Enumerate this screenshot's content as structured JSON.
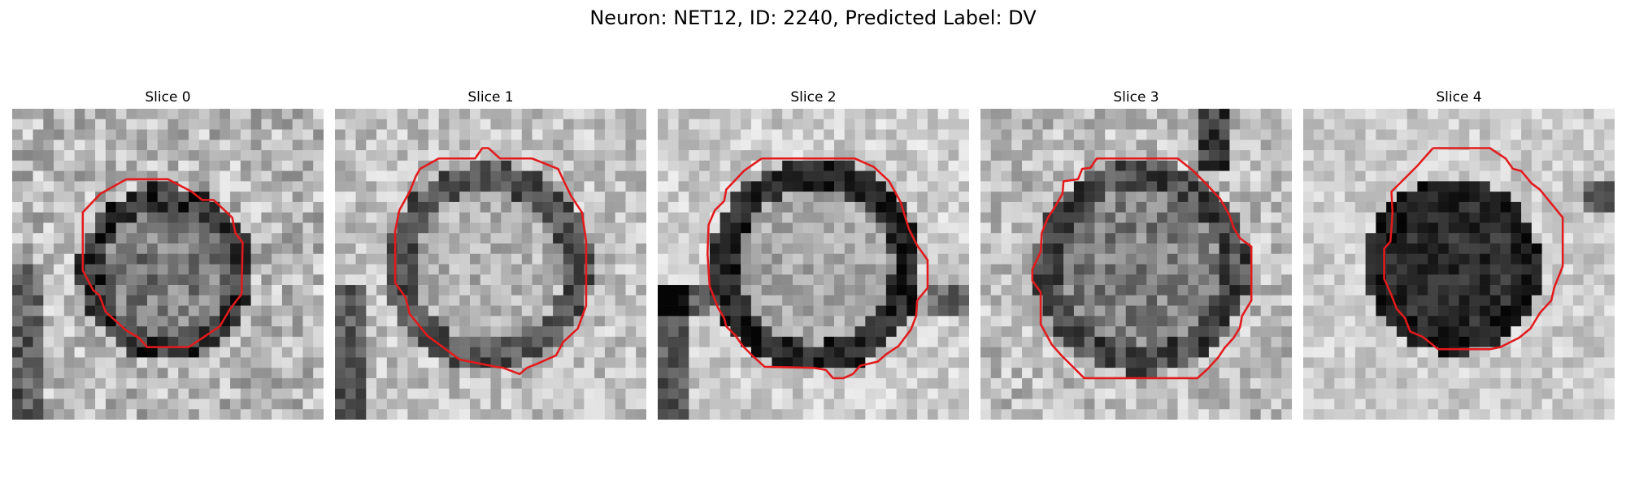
{
  "figure": {
    "title": "Neuron: NET12, ID: 2240, Predicted Label: DV"
  },
  "slices": [
    {
      "label": "Slice 0",
      "contour_color": "#e31a1c"
    },
    {
      "label": "Slice 1",
      "contour_color": "#e31a1c"
    },
    {
      "label": "Slice 2",
      "contour_color": "#e31a1c"
    },
    {
      "label": "Slice 3",
      "contour_color": "#e31a1c"
    },
    {
      "label": "Slice 4",
      "contour_color": "#e31a1c"
    }
  ]
}
